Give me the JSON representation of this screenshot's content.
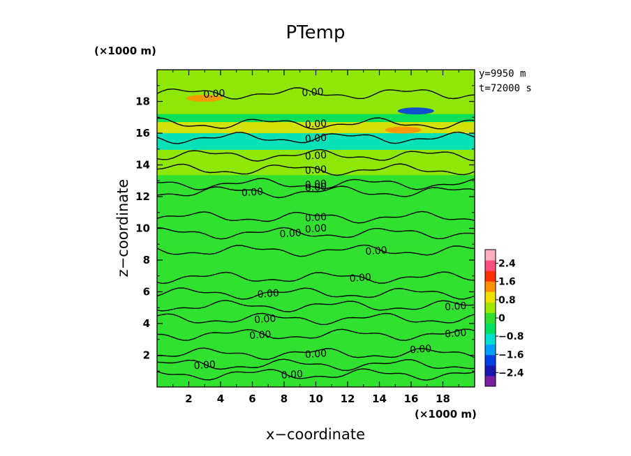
{
  "chart_data": {
    "type": "heatmap",
    "title": "PTemp",
    "xlabel": "x−coordinate",
    "ylabel": "z−coordinate",
    "x_unit": "(×1000 m)",
    "y_unit": "(×1000 m)",
    "xlim": [
      0,
      20
    ],
    "ylim": [
      0,
      20
    ],
    "x_ticks": [
      "2",
      "4",
      "6",
      "8",
      "10",
      "12",
      "14",
      "16",
      "18"
    ],
    "y_ticks": [
      "2",
      "4",
      "6",
      "8",
      "10",
      "12",
      "14",
      "16",
      "18"
    ],
    "x_tick_values": [
      2,
      4,
      6,
      8,
      10,
      12,
      14,
      16,
      18
    ],
    "y_tick_values": [
      2,
      4,
      6,
      8,
      10,
      12,
      14,
      16,
      18
    ],
    "annotations": [
      "y=9950 m",
      "t=72000 s"
    ],
    "contour_level": "0.00",
    "contour_labels": [
      {
        "x": 3.6,
        "z": 18.5
      },
      {
        "x": 9.8,
        "z": 18.6
      },
      {
        "x": 10.0,
        "z": 16.6
      },
      {
        "x": 10.0,
        "z": 15.7
      },
      {
        "x": 10.0,
        "z": 14.6
      },
      {
        "x": 10.0,
        "z": 13.7
      },
      {
        "x": 10.0,
        "z": 12.8
      },
      {
        "x": 10.0,
        "z": 12.6
      },
      {
        "x": 6.0,
        "z": 12.3
      },
      {
        "x": 10.0,
        "z": 10.7
      },
      {
        "x": 8.4,
        "z": 9.7
      },
      {
        "x": 10.0,
        "z": 10.0
      },
      {
        "x": 13.8,
        "z": 8.6
      },
      {
        "x": 12.8,
        "z": 6.9
      },
      {
        "x": 7.0,
        "z": 5.9
      },
      {
        "x": 6.8,
        "z": 4.3
      },
      {
        "x": 6.5,
        "z": 3.3
      },
      {
        "x": 10.0,
        "z": 2.1
      },
      {
        "x": 3.0,
        "z": 1.4
      },
      {
        "x": 8.5,
        "z": 0.8
      },
      {
        "x": 16.6,
        "z": 2.4
      },
      {
        "x": 18.8,
        "z": 3.4
      },
      {
        "x": 18.8,
        "z": 5.1
      }
    ],
    "colorbar": {
      "tick_labels": [
        "2.4",
        "1.6",
        "0.8",
        "0",
        "−0.8",
        "−1.6",
        "−2.4"
      ],
      "tick_values": [
        2.4,
        1.6,
        0.8,
        0,
        -0.8,
        -1.6,
        -2.4
      ],
      "range": [
        -3.0,
        3.0
      ],
      "colors": [
        "#7a1fa0",
        "#1818b0",
        "#0040e0",
        "#00a0ff",
        "#00e0d0",
        "#00e060",
        "#30e030",
        "#a0e800",
        "#f0e000",
        "#ff9000",
        "#ff3000",
        "#ff5080",
        "#ffb0c0"
      ]
    },
    "bands": [
      {
        "z": 18.2,
        "value": 0.5
      },
      {
        "z": 17.4,
        "value": 0.6
      },
      {
        "z": 17.0,
        "value": -0.6
      },
      {
        "z": 16.4,
        "value": 1.0
      },
      {
        "z": 15.6,
        "value": -0.9
      },
      {
        "z": 14.3,
        "value": 0.3
      },
      {
        "z": 12.4,
        "value": -0.2
      },
      {
        "z": 10.5,
        "value": 0.2
      },
      {
        "z": 8.0,
        "value": 0.0
      },
      {
        "z": 4.0,
        "value": 0.1
      }
    ],
    "extremes": [
      {
        "x": 16.3,
        "z": 17.4,
        "value": -2.0
      },
      {
        "x": 15.5,
        "z": 16.2,
        "value": 1.6
      },
      {
        "x": 3.0,
        "z": 18.2,
        "value": 1.2
      }
    ]
  }
}
